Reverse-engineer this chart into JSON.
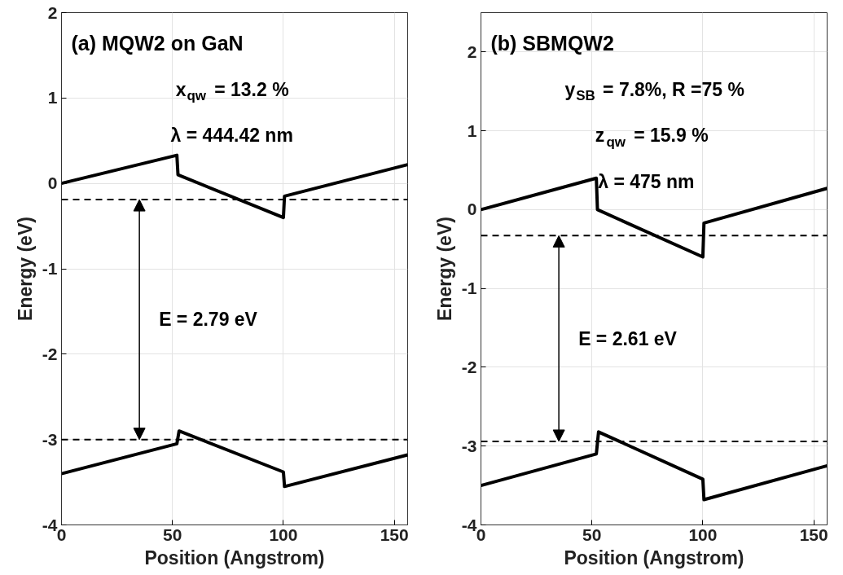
{
  "chart_data": [
    {
      "type": "line",
      "title": "(a)  MQW2 on GaN",
      "xlabel": "Position (Angstrom)",
      "ylabel": "Energy (eV)",
      "annotations": [
        "x$_{qw}$ = 13.2 %",
        "λ =  444.42 nm",
        "E = 2.79 eV"
      ],
      "series": [
        {
          "color": "#000000",
          "x": [
            0,
            52,
            52.5,
            100,
            100.5,
            156
          ],
          "values": [
            0,
            0.33,
            0.1,
            -0.4,
            -0.15,
            0.22
          ]
        },
        {
          "color": "#000000",
          "x": [
            0,
            52,
            53,
            100,
            100.5,
            156
          ],
          "values": [
            -3.4,
            -3.05,
            -2.9,
            -3.38,
            -3.55,
            -3.18
          ]
        }
      ],
      "ref_lines": [
        {
          "axis": "y",
          "value": -0.19,
          "color": "#000000",
          "line_style": "dashed"
        },
        {
          "axis": "y",
          "value": -3.0,
          "color": "#000000",
          "line_style": "dashed"
        }
      ],
      "xlim": [
        0,
        156
      ],
      "xticks": [
        0,
        50,
        100,
        150
      ],
      "ylim": [
        -4,
        2
      ],
      "yticks": [
        -4,
        -3,
        -2,
        -1,
        0,
        1,
        2
      ],
      "grid": true
    },
    {
      "type": "line",
      "title": "(b)      SBMQW2",
      "xlabel": "Position (Angstrom)",
      "ylabel": "Energy (eV)",
      "annotations": [
        "y$_{SB}$= 7.8%, R =75 %",
        "z$_{qw}$ = 15.9 %",
        "λ   = 475  nm",
        "E =  2.61 eV"
      ],
      "series": [
        {
          "color": "#000000",
          "x": [
            0,
            52,
            52.5,
            100,
            100.5,
            156
          ],
          "values": [
            0,
            0.4,
            0,
            -0.6,
            -0.17,
            0.27
          ]
        },
        {
          "color": "#000000",
          "x": [
            0,
            52,
            53,
            100,
            100.5,
            156
          ],
          "values": [
            -3.5,
            -3.1,
            -2.82,
            -3.42,
            -3.68,
            -3.25
          ]
        }
      ],
      "ref_lines": [
        {
          "axis": "y",
          "value": -0.33,
          "color": "#000000",
          "line_style": "dashed"
        },
        {
          "axis": "y",
          "value": -2.94,
          "color": "#000000",
          "line_style": "dashed"
        }
      ],
      "xlim": [
        0,
        156
      ],
      "xticks": [
        0,
        50,
        100,
        150
      ],
      "ylim": [
        -4,
        2.5
      ],
      "yticks": [
        -4,
        -3,
        -2,
        -1,
        0,
        1,
        2
      ],
      "grid": true
    }
  ]
}
